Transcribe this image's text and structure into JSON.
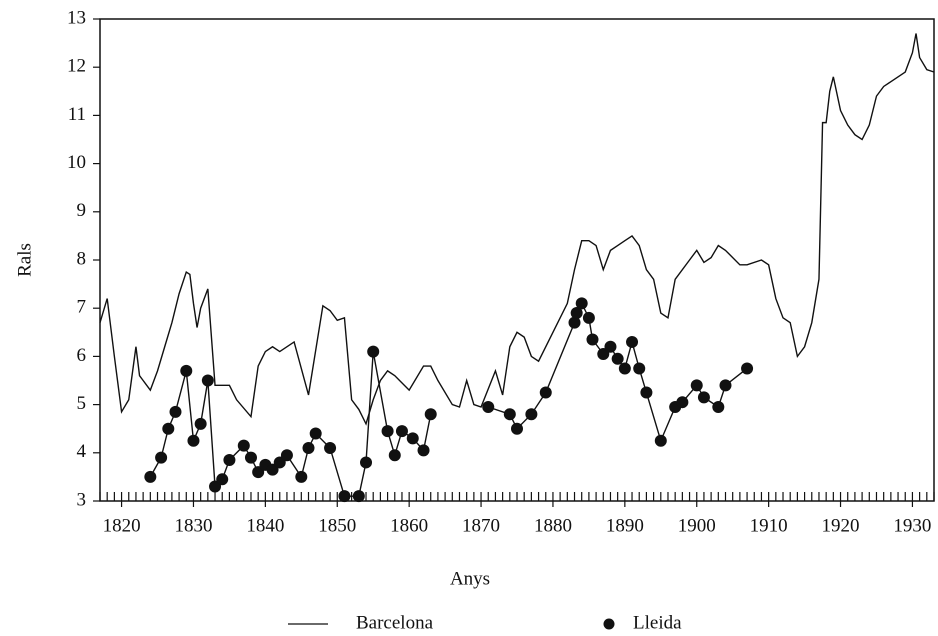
{
  "chart_data": {
    "type": "line",
    "xlabel": "Anys",
    "ylabel": "Rals",
    "xlim": [
      1817,
      1933
    ],
    "ylim": [
      3,
      13
    ],
    "xticks": [
      1820,
      1830,
      1840,
      1850,
      1860,
      1870,
      1880,
      1890,
      1900,
      1910,
      1920,
      1930
    ],
    "yticks": [
      3,
      4,
      5,
      6,
      7,
      8,
      9,
      10,
      11,
      12,
      13
    ],
    "series": [
      {
        "name": "Barcelona",
        "color": "#111111",
        "marker": "none",
        "x": [
          1817,
          1818,
          1819,
          1820,
          1821,
          1822,
          1822.5,
          1823,
          1824,
          1825,
          1826,
          1827,
          1828,
          1829,
          1829.5,
          1830,
          1830.5,
          1831,
          1832,
          1833,
          1835,
          1836,
          1838,
          1839,
          1840,
          1841,
          1842,
          1844,
          1846,
          1848,
          1849,
          1850,
          1851,
          1852,
          1853,
          1854,
          1855,
          1856,
          1857,
          1858,
          1860,
          1862,
          1863,
          1864,
          1866,
          1867,
          1868,
          1869,
          1870,
          1872,
          1873,
          1874,
          1875,
          1876,
          1877,
          1878,
          1880,
          1882,
          1883,
          1884,
          1885,
          1886,
          1887,
          1888,
          1889,
          1890,
          1891,
          1892,
          1893,
          1894,
          1895,
          1896,
          1897,
          1899,
          1900,
          1901,
          1902,
          1903,
          1904,
          1906,
          1907,
          1909,
          1910,
          1911,
          1912,
          1913,
          1914,
          1915,
          1916,
          1917,
          1917.5,
          1918,
          1918.5,
          1919,
          1920,
          1921,
          1922,
          1923,
          1924,
          1925,
          1926,
          1927,
          1929,
          1930,
          1930.5,
          1931,
          1932,
          1933
        ],
        "values": [
          6.7,
          7.2,
          6.0,
          4.85,
          5.1,
          6.2,
          5.6,
          5.5,
          5.3,
          5.7,
          6.2,
          6.7,
          7.3,
          7.75,
          7.7,
          7.1,
          6.6,
          7.0,
          7.4,
          5.4,
          5.4,
          5.1,
          4.75,
          5.8,
          6.1,
          6.2,
          6.1,
          6.3,
          5.2,
          7.05,
          6.95,
          6.75,
          6.8,
          5.1,
          4.9,
          4.6,
          5.1,
          5.5,
          5.7,
          5.6,
          5.3,
          5.8,
          5.8,
          5.5,
          5.0,
          4.95,
          5.5,
          5.0,
          4.95,
          5.7,
          5.2,
          6.2,
          6.5,
          6.4,
          6.0,
          5.9,
          6.5,
          7.1,
          7.8,
          8.4,
          8.4,
          8.3,
          7.8,
          8.2,
          8.3,
          8.4,
          8.5,
          8.3,
          7.8,
          7.6,
          6.9,
          6.8,
          7.6,
          8.0,
          8.2,
          7.95,
          8.05,
          8.3,
          8.2,
          7.9,
          7.9,
          8.0,
          7.9,
          7.2,
          6.8,
          6.7,
          6.0,
          6.2,
          6.7,
          7.6,
          10.85,
          10.85,
          11.5,
          11.8,
          11.1,
          10.8,
          10.6,
          10.5,
          10.8,
          11.4,
          11.6,
          11.7,
          11.9,
          12.3,
          12.7,
          12.2,
          11.95,
          11.9
        ]
      },
      {
        "name": "Lleida",
        "color": "#111111",
        "marker": "circle",
        "x": [
          1824,
          1825.5,
          1826.5,
          1827.5,
          1829,
          1830,
          1831,
          1832,
          1833,
          1834,
          1835,
          1837,
          1838,
          1839,
          1840,
          1841,
          1842,
          1843,
          1845,
          1846,
          1847,
          1849,
          1851,
          1853,
          1854,
          1855,
          1857,
          1858,
          1859,
          1860.5,
          1862,
          1863,
          1867,
          1871,
          1874,
          1875,
          1877,
          1879,
          1883,
          1883.3,
          1884,
          1885,
          1885.5,
          1887,
          1888,
          1889,
          1890,
          1891,
          1892,
          1893,
          1895,
          1897,
          1898,
          1900,
          1901,
          1903,
          1904,
          1907
        ],
        "values": [
          3.5,
          3.9,
          4.5,
          4.85,
          5.7,
          4.25,
          4.6,
          5.5,
          3.3,
          3.45,
          3.85,
          4.15,
          3.9,
          3.6,
          3.75,
          3.65,
          3.8,
          3.95,
          3.5,
          4.1,
          4.4,
          4.1,
          3.1,
          3.1,
          3.8,
          6.1,
          4.45,
          3.95,
          4.45,
          4.3,
          4.05,
          4.8,
          null,
          4.95,
          4.8,
          4.5,
          4.8,
          5.25,
          6.7,
          6.9,
          7.1,
          6.8,
          6.35,
          6.05,
          6.2,
          5.95,
          5.75,
          6.3,
          5.75,
          5.25,
          4.25,
          4.95,
          5.05,
          5.4,
          5.15,
          4.95,
          5.4,
          5.75
        ]
      }
    ]
  }
}
